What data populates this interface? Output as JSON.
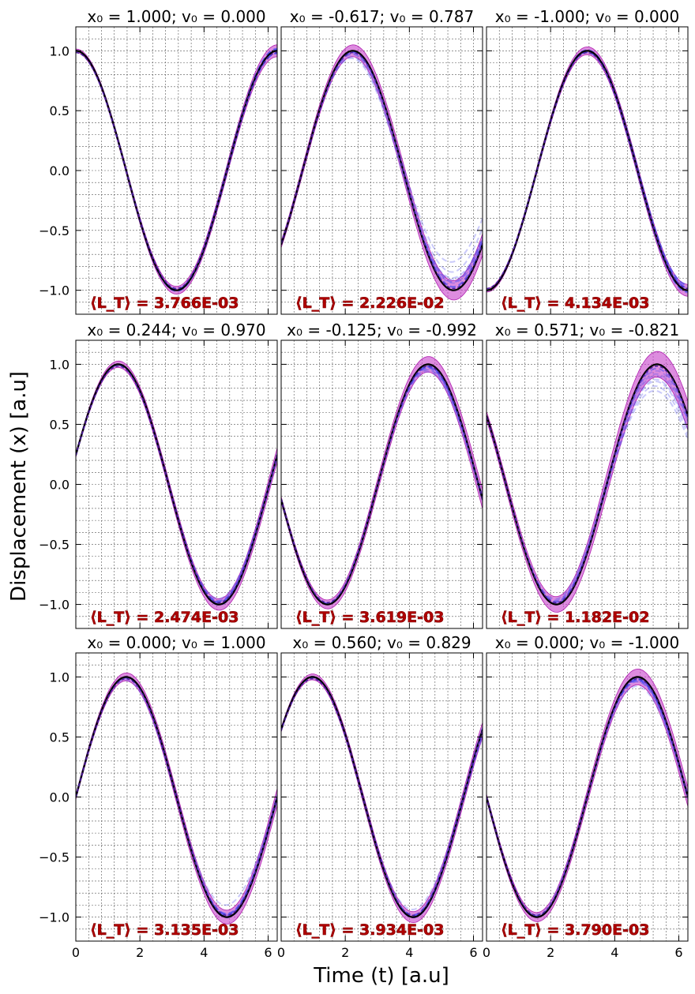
{
  "chart_data": {
    "type": "line",
    "xlabel": "Time (t) [a.u]",
    "ylabel": "Displacement (x) [a.u]",
    "xlim": [
      0,
      6.283
    ],
    "ylim": [
      -1.2,
      1.2
    ],
    "x_ticks": [
      "0",
      "2",
      "4",
      "6"
    ],
    "y_ticks": [
      "−1.0",
      "−0.5",
      "0.0",
      "0.5",
      "1.0"
    ],
    "y_tick_values": [
      -1.0,
      -0.5,
      0.0,
      0.5,
      1.0
    ],
    "x_tick_values": [
      0,
      2,
      4,
      6
    ],
    "grid": true,
    "colors": {
      "reference": "#000000",
      "band": "#c020c0",
      "ensemble": "#5050f0",
      "loss_text": "#b00000"
    },
    "panels": [
      {
        "title": "x₀ = 1.000; v₀ = 0.000",
        "x0": 1.0,
        "v0": 0.0,
        "loss": "⟨L_T⟩ = 3.766E-03",
        "band": 0.05,
        "spread": 0.12,
        "drift": [
          0.02,
          -0.03,
          0.01,
          -0.05,
          0.03,
          -0.02,
          0.04,
          -0.01
        ],
        "fade": 0.1
      },
      {
        "title": "x₀ = -0.617; v₀ = 0.787",
        "x0": -0.617,
        "v0": 0.787,
        "loss": "⟨L_T⟩ = 2.226E-02",
        "band": 0.09,
        "spread": 0.35,
        "drift": [
          0.05,
          -0.15,
          0.3,
          -0.25,
          0.1,
          -0.05,
          0.2,
          -0.3
        ],
        "fade": 0.6
      },
      {
        "title": "x₀ = -1.000; v₀ = 0.000",
        "x0": -1.0,
        "v0": 0.0,
        "loss": "⟨L_T⟩ = 4.134E-03",
        "band": 0.05,
        "spread": 0.18,
        "drift": [
          0.03,
          -0.06,
          0.1,
          -0.08,
          0.02,
          0.05,
          -0.04,
          0.07
        ],
        "fade": 0.2
      },
      {
        "title": "x₀ = 0.244; v₀ = 0.970",
        "x0": 0.244,
        "v0": 0.97,
        "loss": "⟨L_T⟩ = 2.474E-03",
        "band": 0.06,
        "spread": 0.2,
        "drift": [
          0.02,
          -0.1,
          0.15,
          -0.05,
          0.08,
          -0.12,
          0.04,
          -0.03
        ],
        "fade": 0.4
      },
      {
        "title": "x₀ = -0.125; v₀ = -0.992",
        "x0": -0.125,
        "v0": -0.992,
        "loss": "⟨L_T⟩ = 3.619E-03",
        "band": 0.08,
        "spread": 0.25,
        "drift": [
          0.03,
          -0.12,
          0.18,
          -0.08,
          0.1,
          -0.15,
          0.05,
          -0.06
        ],
        "fade": 0.45
      },
      {
        "title": "x₀ = 0.571; v₀ = -0.821",
        "x0": 0.571,
        "v0": -0.821,
        "loss": "⟨L_T⟩ = 1.182E-02",
        "band": 0.12,
        "spread": 0.3,
        "drift": [
          0.06,
          -0.2,
          0.25,
          -0.3,
          0.12,
          -0.18,
          0.2,
          -0.25
        ],
        "fade": 0.6
      },
      {
        "title": "x₀ = 0.000; v₀ = 1.000",
        "x0": 0.0,
        "v0": 1.0,
        "loss": "⟨L_T⟩ = 3.135E-03",
        "band": 0.07,
        "spread": 0.15,
        "drift": [
          0.02,
          -0.05,
          0.08,
          -0.3,
          0.03,
          -0.04,
          0.05,
          -0.02
        ],
        "fade": 0.5
      },
      {
        "title": "x₀ = 0.560; v₀ = 0.829",
        "x0": 0.56,
        "v0": 0.829,
        "loss": "⟨L_T⟩ = 3.934E-03",
        "band": 0.06,
        "spread": 0.1,
        "drift": [
          0.02,
          -0.03,
          0.04,
          -0.2,
          0.02,
          -0.02,
          0.03,
          -0.01
        ],
        "fade": 0.5
      },
      {
        "title": "x₀ = 0.000; v₀ = -1.000",
        "x0": 0.0,
        "v0": -1.0,
        "loss": "⟨L_T⟩ = 3.790E-03",
        "band": 0.08,
        "spread": 0.2,
        "drift": [
          0.03,
          -0.08,
          0.25,
          -0.05,
          0.06,
          -0.1,
          0.04,
          -0.03
        ],
        "fade": 0.5
      }
    ]
  }
}
